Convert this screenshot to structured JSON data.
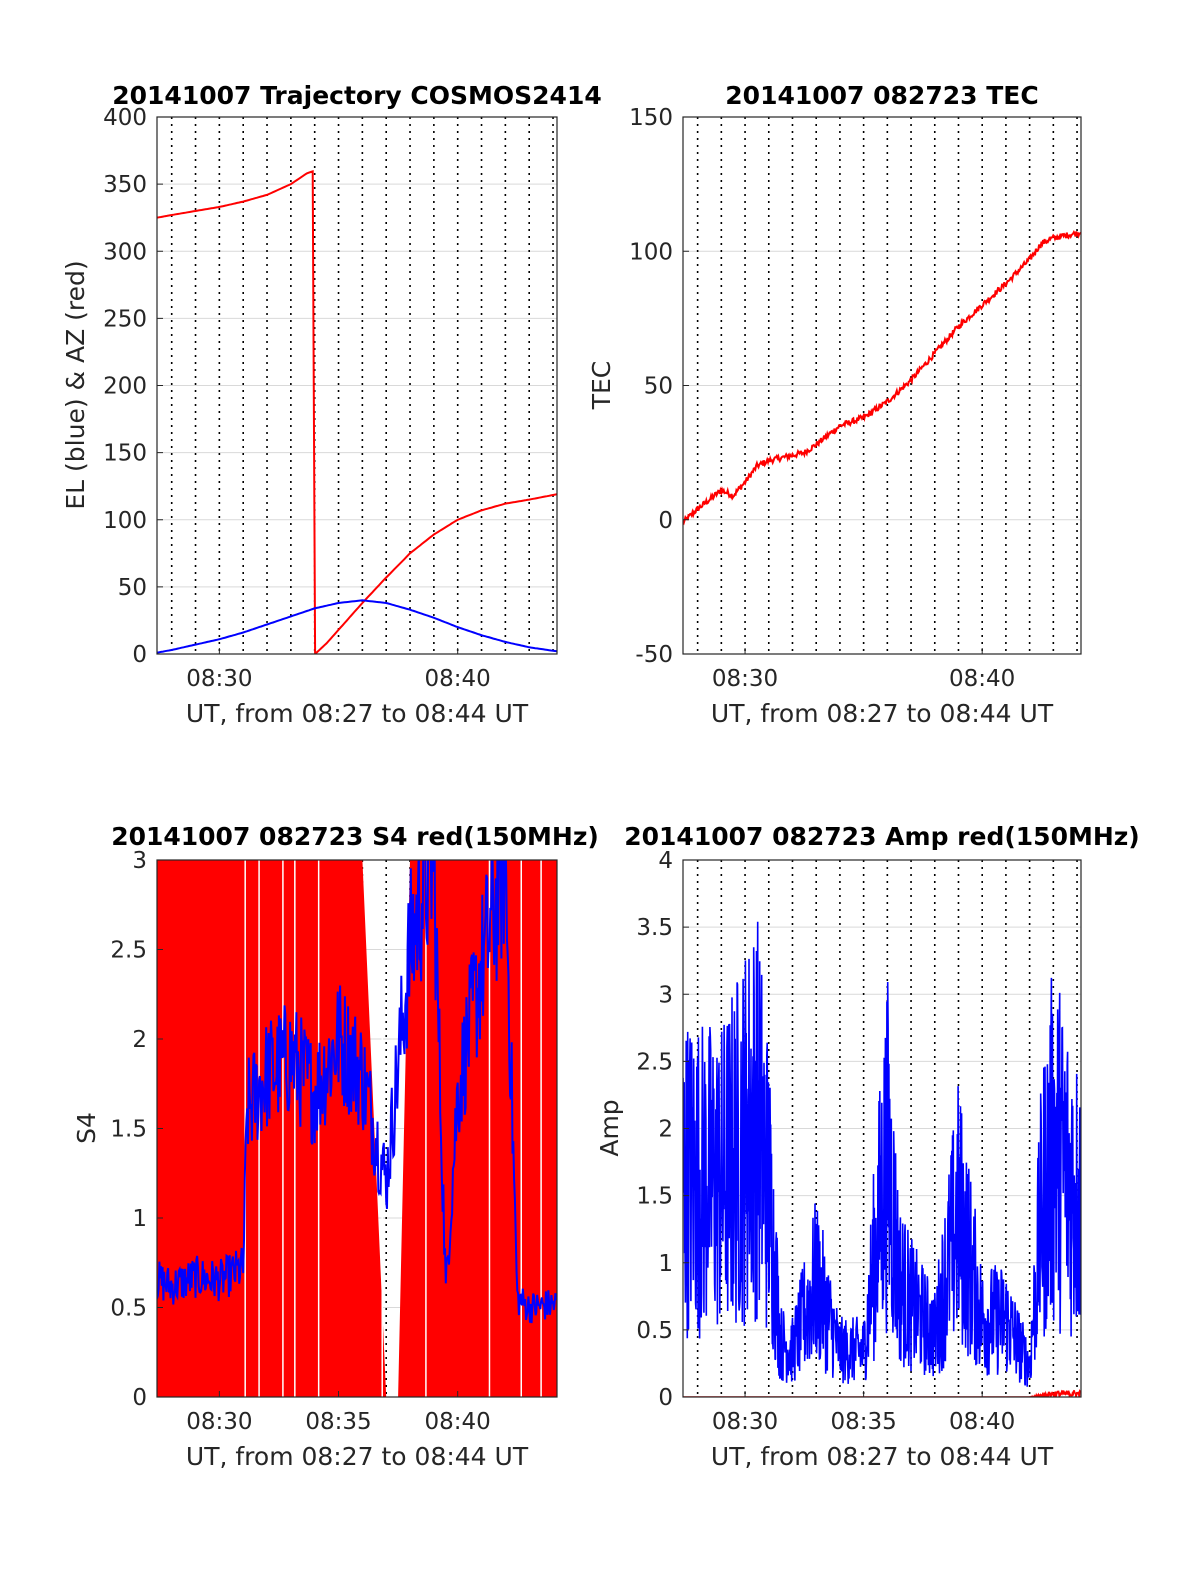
{
  "chart_data": [
    {
      "type": "line",
      "title": "20141007 Trajectory COSMOS2414",
      "xlabel": "UT, from 08:27 to 08:44 UT",
      "ylabel": "EL (blue) & AZ (red)",
      "xlim": [
        "08:27:23",
        "08:44:10"
      ],
      "ylim": [
        0,
        400
      ],
      "yticks": [
        "0",
        "50",
        "100",
        "150",
        "200",
        "250",
        "300",
        "350",
        "400"
      ],
      "xticks": [
        {
          "t": "08:30",
          "label": "08:30"
        },
        {
          "t": "08:40",
          "label": "08:40"
        }
      ],
      "grid": true,
      "colors": {
        "AZ": "#ff0000",
        "EL": "#0000ff"
      },
      "series": [
        {
          "color": "#ff0000",
          "x": [
            "08:27:23",
            "08:28",
            "08:29",
            "08:30",
            "08:31",
            "08:32",
            "08:33",
            "08:33:40",
            "08:34:00",
            "08:34:01",
            "08:34:30",
            "08:35",
            "08:36",
            "08:37",
            "08:38",
            "08:39",
            "08:40",
            "08:41",
            "08:42",
            "08:43",
            "08:44:10"
          ],
          "values": [
            325,
            327,
            330,
            333,
            337,
            342,
            350,
            358,
            360,
            0,
            8,
            18,
            38,
            57,
            75,
            89,
            100,
            107,
            112,
            115,
            119
          ]
        },
        {
          "color": "#0000ff",
          "x": [
            "08:27:23",
            "08:28",
            "08:29",
            "08:30",
            "08:31",
            "08:32",
            "08:33",
            "08:34",
            "08:35",
            "08:36",
            "08:37",
            "08:38",
            "08:39",
            "08:40",
            "08:41",
            "08:42",
            "08:43",
            "08:44:10"
          ],
          "values": [
            1,
            3,
            7,
            11,
            16,
            22,
            28,
            34,
            38,
            40,
            38,
            33,
            27,
            20,
            14,
            9,
            5,
            2
          ]
        }
      ]
    },
    {
      "type": "line",
      "title": "20141007 082723 TEC",
      "xlabel": "UT, from 08:27 to 08:44 UT",
      "ylabel": "TEC",
      "xlim": [
        "08:27:23",
        "08:44:10"
      ],
      "ylim": [
        -50,
        150
      ],
      "yticks": [
        "-50",
        "0",
        "50",
        "100",
        "150"
      ],
      "xticks": [
        {
          "t": "08:30",
          "label": "08:30"
        },
        {
          "t": "08:40",
          "label": "08:40"
        }
      ],
      "grid": true,
      "series": [
        {
          "color": "#ff0000",
          "x": [
            "08:27:23",
            "08:28",
            "08:29",
            "08:29:30",
            "08:30",
            "08:30:30",
            "08:31",
            "08:32",
            "08:32:30",
            "08:33",
            "08:34",
            "08:35",
            "08:36",
            "08:37",
            "08:38",
            "08:39",
            "08:40",
            "08:41",
            "08:42",
            "08:42:30",
            "08:43",
            "08:44:10"
          ],
          "values": [
            -1,
            4,
            11,
            9,
            14,
            20,
            22,
            24,
            25,
            28,
            35,
            38,
            44,
            52,
            62,
            72,
            80,
            88,
            97,
            103,
            105,
            107
          ]
        }
      ]
    },
    {
      "type": "line",
      "title": "20141007 082723 S4 red(150MHz)",
      "xlabel": "UT, from 08:27 to 08:44 UT",
      "ylabel": "S4",
      "xlim": [
        "08:27:23",
        "08:44:10"
      ],
      "ylim": [
        0,
        3
      ],
      "yticks": [
        "0",
        "0.5",
        "1",
        "1.5",
        "2",
        "2.5",
        "3"
      ],
      "xticks": [
        {
          "t": "08:30",
          "label": "08:30"
        },
        {
          "t": "08:35",
          "label": "08:35"
        },
        {
          "t": "08:40",
          "label": "08:40"
        }
      ],
      "grid": true,
      "series": [
        {
          "color": "#ff0000",
          "x": [
            "08:27:23",
            "08:31:00",
            "08:33:45",
            "08:35:00",
            "08:36:00",
            "08:37:00",
            "08:37:30",
            "08:38:00",
            "08:39:30",
            "08:40:00",
            "08:44:10"
          ],
          "values": [
            3,
            3,
            3,
            3,
            3,
            0,
            0,
            3,
            3,
            3,
            3
          ]
        },
        {
          "color": "#0000ff",
          "x": [
            "08:27:23",
            "08:28",
            "08:29",
            "08:30",
            "08:31",
            "08:31:10",
            "08:32",
            "08:33",
            "08:34",
            "08:35",
            "08:36",
            "08:37",
            "08:38",
            "08:38:30",
            "08:39",
            "08:39:30",
            "08:40",
            "08:41",
            "08:42",
            "08:42:30",
            "08:43",
            "08:44:10"
          ],
          "values": [
            0.65,
            0.62,
            0.67,
            0.65,
            0.72,
            1.6,
            1.8,
            1.9,
            1.7,
            2.0,
            1.8,
            1.2,
            2.5,
            2.8,
            3.0,
            0.6,
            1.7,
            2.4,
            3.0,
            0.55,
            0.5,
            0.52
          ]
        }
      ]
    },
    {
      "type": "line",
      "title": "20141007 082723 Amp red(150MHz)",
      "xlabel": "UT, from 08:27 to 08:44 UT",
      "ylabel": "Amp",
      "xlim": [
        "08:27:23",
        "08:44:10"
      ],
      "ylim": [
        0,
        4
      ],
      "yticks": [
        "0",
        "0.5",
        "1",
        "1.5",
        "2",
        "2.5",
        "3",
        "3.5",
        "4"
      ],
      "xticks": [
        {
          "t": "08:30",
          "label": "08:30"
        },
        {
          "t": "08:35",
          "label": "08:35"
        },
        {
          "t": "08:40",
          "label": "08:40"
        }
      ],
      "grid": true,
      "series": [
        {
          "color": "#0000ff",
          "x": [
            "08:27:23",
            "08:29",
            "08:30:30",
            "08:31:00",
            "08:31:30",
            "08:32",
            "08:33",
            "08:34",
            "08:35",
            "08:36",
            "08:36:30",
            "08:37",
            "08:38",
            "08:39",
            "08:40",
            "08:41",
            "08:42",
            "08:42:30",
            "08:43",
            "08:44:10"
          ],
          "values": [
            2.9,
            2.8,
            3.7,
            2.7,
            0.7,
            0.6,
            1.5,
            0.6,
            0.6,
            3.2,
            1.5,
            1.2,
            0.8,
            2.4,
            1.0,
            1.0,
            0.4,
            2.4,
            3.3,
            2.5
          ]
        },
        {
          "color": "#ff0000",
          "x": [
            "08:27:23",
            "08:42",
            "08:43",
            "08:44:10"
          ],
          "values": [
            0,
            0,
            0.05,
            0.05
          ]
        }
      ]
    }
  ]
}
